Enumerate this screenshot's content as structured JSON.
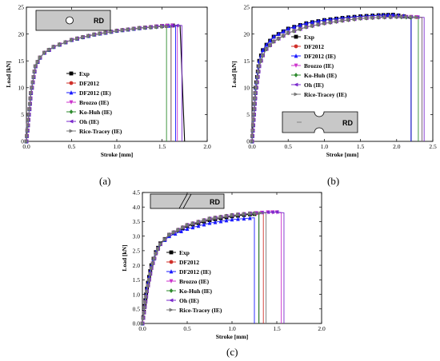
{
  "panels": [
    {
      "id": "a",
      "caption": "(a)",
      "specimen_label": "RD",
      "specimen": "hole"
    },
    {
      "id": "b",
      "caption": "(b)",
      "specimen_label": "RD",
      "specimen": "notch"
    },
    {
      "id": "c",
      "caption": "(c)",
      "specimen_label": "RD",
      "specimen": "shear"
    }
  ],
  "legend_entries": [
    {
      "label": "Exp",
      "color": "#000000",
      "marker": "square"
    },
    {
      "label": "DF2012",
      "color": "#d0302a",
      "marker": "circle"
    },
    {
      "label": "DF2012 (IE)",
      "color": "#1a1aff",
      "marker": "triangle-up"
    },
    {
      "label": "Brozzo (IE)",
      "color": "#cc33cc",
      "marker": "triangle-down"
    },
    {
      "label": "Ko-Huh (IE)",
      "color": "#2e8b2e",
      "marker": "diamond"
    },
    {
      "label": "Oh (IE)",
      "color": "#7a2acc",
      "marker": "triangle-left"
    },
    {
      "label": "Rice-Tracey (IE)",
      "color": "#777777",
      "marker": "triangle-right"
    }
  ],
  "chart_data": [
    {
      "type": "line",
      "xlabel": "Stroke [mm]",
      "ylabel": "Load [kN]",
      "xlim": [
        0,
        2.0
      ],
      "ylim": [
        0,
        25
      ],
      "xticks": [
        "0.0",
        "0.5",
        "1.0",
        "1.5",
        "2.0"
      ],
      "yticks": [
        "0",
        "5",
        "10",
        "15",
        "20",
        "25"
      ],
      "legend_placement": "center-right",
      "series": [
        {
          "name": "Exp",
          "x": [
            0,
            0.05,
            0.1,
            0.15,
            0.2,
            0.3,
            0.5,
            0.75,
            1.0,
            1.25,
            1.5,
            1.62,
            1.7,
            1.75
          ],
          "y": [
            0,
            9,
            14,
            15.6,
            16.5,
            17.6,
            18.9,
            19.9,
            20.6,
            21.1,
            21.5,
            21.6,
            21.6,
            0
          ]
        },
        {
          "name": "DF2012",
          "x": [
            0,
            0.05,
            0.1,
            0.15,
            0.2,
            0.3,
            0.5,
            0.75,
            1.0,
            1.25,
            1.5,
            1.6,
            1.6
          ],
          "y": [
            0,
            9,
            14,
            15.6,
            16.5,
            17.6,
            18.9,
            19.9,
            20.6,
            21.1,
            21.4,
            21.5,
            0
          ]
        },
        {
          "name": "DF2012 (IE)",
          "x": [
            0,
            0.05,
            0.1,
            0.15,
            0.2,
            0.3,
            0.5,
            0.75,
            1.0,
            1.25,
            1.5,
            1.65,
            1.65
          ],
          "y": [
            0,
            9,
            14,
            15.6,
            16.5,
            17.6,
            18.9,
            19.9,
            20.6,
            21.1,
            21.5,
            21.6,
            0
          ]
        },
        {
          "name": "Brozzo (IE)",
          "x": [
            0,
            0.05,
            0.1,
            0.15,
            0.2,
            0.3,
            0.5,
            0.75,
            1.0,
            1.25,
            1.5,
            1.67,
            1.67
          ],
          "y": [
            0,
            9,
            14,
            15.6,
            16.5,
            17.6,
            18.9,
            19.9,
            20.6,
            21.1,
            21.5,
            21.6,
            0
          ]
        },
        {
          "name": "Ko-Huh (IE)",
          "x": [
            0,
            0.05,
            0.1,
            0.15,
            0.2,
            0.3,
            0.5,
            0.75,
            1.0,
            1.25,
            1.5,
            1.55,
            1.55
          ],
          "y": [
            0,
            9,
            14,
            15.6,
            16.5,
            17.6,
            18.9,
            19.9,
            20.6,
            21.1,
            21.4,
            21.5,
            0
          ]
        },
        {
          "name": "Oh (IE)",
          "x": [
            0,
            0.05,
            0.1,
            0.15,
            0.2,
            0.3,
            0.5,
            0.75,
            1.0,
            1.25,
            1.5,
            1.72,
            1.72
          ],
          "y": [
            0,
            9,
            14,
            15.6,
            16.5,
            17.6,
            18.9,
            19.9,
            20.6,
            21.1,
            21.5,
            21.6,
            0
          ]
        },
        {
          "name": "Rice-Tracey (IE)",
          "x": [
            0,
            0.05,
            0.1,
            0.15,
            0.2,
            0.3,
            0.5,
            0.75,
            1.0,
            1.25,
            1.5,
            1.6,
            1.6
          ],
          "y": [
            0,
            9,
            14,
            15.6,
            16.5,
            17.6,
            18.9,
            19.9,
            20.6,
            21.1,
            21.4,
            21.5,
            0
          ]
        }
      ]
    },
    {
      "type": "line",
      "xlabel": "Stroke [mm]",
      "ylabel": "Load [kN]",
      "xlim": [
        0,
        2.5
      ],
      "ylim": [
        0,
        25
      ],
      "xticks": [
        "0.0",
        "0.5",
        "1.0",
        "1.5",
        "2.0",
        "2.5"
      ],
      "yticks": [
        "0",
        "5",
        "10",
        "15",
        "20",
        "25"
      ],
      "legend_placement": "top-left",
      "series": [
        {
          "name": "Exp",
          "x": [
            0,
            0.05,
            0.1,
            0.15,
            0.2,
            0.3,
            0.5,
            0.75,
            1.0,
            1.25,
            1.5,
            1.75,
            1.95,
            2.1,
            2.2,
            2.2
          ],
          "y": [
            0,
            10,
            15,
            17,
            18,
            19.5,
            21,
            22,
            22.6,
            23,
            23.3,
            23.5,
            23.6,
            23.3,
            22.8,
            0
          ]
        },
        {
          "name": "DF2012",
          "x": [
            0,
            0.05,
            0.1,
            0.15,
            0.2,
            0.3,
            0.5,
            0.75,
            1.0,
            1.25,
            1.5,
            1.75,
            2.0,
            2.2,
            2.35,
            2.35
          ],
          "y": [
            0,
            9,
            14,
            16,
            17.2,
            18.6,
            20.2,
            21.3,
            22,
            22.5,
            22.9,
            23.1,
            23.2,
            23.2,
            23.1,
            0
          ]
        },
        {
          "name": "DF2012 (IE)",
          "x": [
            0,
            0.05,
            0.1,
            0.15,
            0.2,
            0.3,
            0.5,
            0.75,
            1.0,
            1.25,
            1.5,
            1.75,
            1.95,
            2.1,
            2.2,
            2.2
          ],
          "y": [
            0,
            10,
            15,
            17,
            18,
            19.5,
            21,
            22,
            22.6,
            23,
            23.3,
            23.5,
            23.6,
            23.4,
            23,
            0
          ]
        },
        {
          "name": "Brozzo (IE)",
          "x": [
            0,
            0.05,
            0.1,
            0.15,
            0.2,
            0.3,
            0.5,
            0.75,
            1.0,
            1.25,
            1.5,
            1.75,
            2.0,
            2.2,
            2.35,
            2.35
          ],
          "y": [
            0,
            9,
            14,
            16,
            17.2,
            18.6,
            20.2,
            21.3,
            22,
            22.5,
            22.9,
            23.1,
            23.2,
            23.2,
            23.1,
            0
          ]
        },
        {
          "name": "Ko-Huh (IE)",
          "x": [
            0,
            0.05,
            0.1,
            0.15,
            0.2,
            0.3,
            0.5,
            0.75,
            1.0,
            1.25,
            1.5,
            1.75,
            2.0,
            2.2,
            2.3,
            2.3
          ],
          "y": [
            0,
            9,
            14,
            16,
            17.2,
            18.6,
            20.2,
            21.3,
            22,
            22.5,
            22.9,
            23.1,
            23.2,
            23.1,
            23,
            0
          ]
        },
        {
          "name": "Oh (IE)",
          "x": [
            0,
            0.05,
            0.1,
            0.15,
            0.2,
            0.3,
            0.5,
            0.75,
            1.0,
            1.25,
            1.5,
            1.75,
            2.0,
            2.2,
            2.38,
            2.38
          ],
          "y": [
            0,
            9,
            14,
            16,
            17.2,
            18.6,
            20.2,
            21.3,
            22,
            22.5,
            22.9,
            23.1,
            23.2,
            23.2,
            23.1,
            0
          ]
        },
        {
          "name": "Rice-Tracey (IE)",
          "x": [
            0,
            0.05,
            0.1,
            0.15,
            0.2,
            0.3,
            0.5,
            0.75,
            1.0,
            1.25,
            1.5,
            1.75,
            2.0,
            2.2,
            2.35,
            2.35
          ],
          "y": [
            0,
            9,
            14,
            16,
            17.2,
            18.6,
            20.2,
            21.3,
            22,
            22.5,
            22.9,
            23.1,
            23.2,
            23.2,
            23.1,
            0
          ]
        }
      ]
    },
    {
      "type": "line",
      "xlabel": "Stroke [mm]",
      "ylabel": "Load [kN]",
      "xlim": [
        0,
        2.0
      ],
      "ylim": [
        0,
        4.5
      ],
      "xticks": [
        "0.0",
        "0.5",
        "1.0",
        "1.5",
        "2.0"
      ],
      "yticks": [
        "0.0",
        "0.5",
        "1.0",
        "1.5",
        "2.0",
        "2.5",
        "3.0",
        "3.5",
        "4.0",
        "4.5"
      ],
      "legend_placement": "center-right",
      "series": [
        {
          "name": "Exp",
          "x": [
            0,
            0.05,
            0.1,
            0.15,
            0.2,
            0.3,
            0.5,
            0.75,
            1.0,
            1.2,
            1.3,
            1.3
          ],
          "y": [
            0,
            1.2,
            2.0,
            2.45,
            2.75,
            3.05,
            3.35,
            3.55,
            3.68,
            3.75,
            3.77,
            0
          ]
        },
        {
          "name": "DF2012",
          "x": [
            0,
            0.05,
            0.1,
            0.15,
            0.2,
            0.3,
            0.5,
            0.75,
            1.0,
            1.2,
            1.35,
            1.35
          ],
          "y": [
            0,
            1.1,
            1.9,
            2.4,
            2.72,
            3.05,
            3.38,
            3.6,
            3.72,
            3.78,
            3.8,
            0
          ]
        },
        {
          "name": "DF2012 (IE)",
          "x": [
            0,
            0.05,
            0.1,
            0.15,
            0.2,
            0.3,
            0.5,
            0.75,
            1.0,
            1.2,
            1.25,
            1.25
          ],
          "y": [
            0,
            1.2,
            2.0,
            2.45,
            2.73,
            3.0,
            3.25,
            3.45,
            3.57,
            3.62,
            3.63,
            0
          ]
        },
        {
          "name": "Brozzo (IE)",
          "x": [
            0,
            0.05,
            0.1,
            0.15,
            0.2,
            0.3,
            0.5,
            0.75,
            1.0,
            1.2,
            1.4,
            1.5,
            1.55,
            1.55
          ],
          "y": [
            0,
            1.1,
            1.9,
            2.4,
            2.72,
            3.05,
            3.38,
            3.6,
            3.72,
            3.78,
            3.82,
            3.82,
            3.8,
            0
          ]
        },
        {
          "name": "Ko-Huh (IE)",
          "x": [
            0,
            0.05,
            0.1,
            0.15,
            0.2,
            0.3,
            0.5,
            0.75,
            1.0,
            1.2,
            1.3,
            1.3
          ],
          "y": [
            0,
            1.1,
            1.9,
            2.4,
            2.72,
            3.05,
            3.38,
            3.6,
            3.72,
            3.77,
            3.78,
            0
          ]
        },
        {
          "name": "Oh (IE)",
          "x": [
            0,
            0.05,
            0.1,
            0.15,
            0.2,
            0.3,
            0.5,
            0.75,
            1.0,
            1.2,
            1.4,
            1.5,
            1.58,
            1.58
          ],
          "y": [
            0,
            1.1,
            1.9,
            2.4,
            2.72,
            3.05,
            3.38,
            3.6,
            3.72,
            3.78,
            3.82,
            3.83,
            3.8,
            0
          ]
        },
        {
          "name": "Rice-Tracey (IE)",
          "x": [
            0,
            0.05,
            0.1,
            0.15,
            0.2,
            0.3,
            0.5,
            0.75,
            1.0,
            1.2,
            1.38,
            1.38
          ],
          "y": [
            0,
            1.1,
            1.9,
            2.4,
            2.72,
            3.05,
            3.38,
            3.6,
            3.72,
            3.78,
            3.8,
            0
          ]
        }
      ]
    }
  ]
}
